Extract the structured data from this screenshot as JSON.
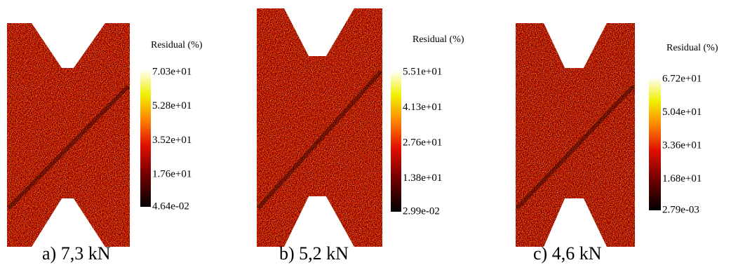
{
  "panels": [
    {
      "caption": "a) 7,3 kN",
      "colorbar": {
        "title": "Residual (%)",
        "ticks": [
          "7.03e+01",
          "5.28e+01",
          "3.52e+01",
          "1.76e+01",
          "4.64e-02"
        ]
      }
    },
    {
      "caption": "b) 5,2 kN",
      "colorbar": {
        "title": "Residual (%)",
        "ticks": [
          "5.51e+01",
          "4.13e+01",
          "2.76e+01",
          "1.38e+01",
          "2.99e-02"
        ]
      }
    },
    {
      "caption": "c) 4,6 kN",
      "colorbar": {
        "title": "Residual (%)",
        "ticks": [
          "6.72e+01",
          "5.04e+01",
          "3.36e+01",
          "1.68e+01",
          "2.79e-03"
        ]
      }
    }
  ]
}
